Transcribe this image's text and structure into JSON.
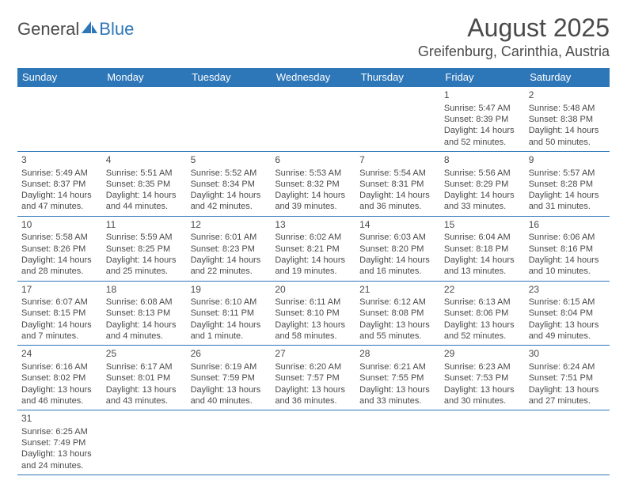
{
  "logo": {
    "textA": "General",
    "textB": "Blue"
  },
  "title": "August 2025",
  "location": "Greifenburg, Carinthia, Austria",
  "colors": {
    "accent": "#2d76b8",
    "text": "#4a4a4a",
    "bg": "#ffffff"
  },
  "dayHeaders": [
    "Sunday",
    "Monday",
    "Tuesday",
    "Wednesday",
    "Thursday",
    "Friday",
    "Saturday"
  ],
  "weeks": [
    [
      null,
      null,
      null,
      null,
      null,
      {
        "n": "1",
        "sr": "Sunrise: 5:47 AM",
        "ss": "Sunset: 8:39 PM",
        "dl1": "Daylight: 14 hours",
        "dl2": "and 52 minutes."
      },
      {
        "n": "2",
        "sr": "Sunrise: 5:48 AM",
        "ss": "Sunset: 8:38 PM",
        "dl1": "Daylight: 14 hours",
        "dl2": "and 50 minutes."
      }
    ],
    [
      {
        "n": "3",
        "sr": "Sunrise: 5:49 AM",
        "ss": "Sunset: 8:37 PM",
        "dl1": "Daylight: 14 hours",
        "dl2": "and 47 minutes."
      },
      {
        "n": "4",
        "sr": "Sunrise: 5:51 AM",
        "ss": "Sunset: 8:35 PM",
        "dl1": "Daylight: 14 hours",
        "dl2": "and 44 minutes."
      },
      {
        "n": "5",
        "sr": "Sunrise: 5:52 AM",
        "ss": "Sunset: 8:34 PM",
        "dl1": "Daylight: 14 hours",
        "dl2": "and 42 minutes."
      },
      {
        "n": "6",
        "sr": "Sunrise: 5:53 AM",
        "ss": "Sunset: 8:32 PM",
        "dl1": "Daylight: 14 hours",
        "dl2": "and 39 minutes."
      },
      {
        "n": "7",
        "sr": "Sunrise: 5:54 AM",
        "ss": "Sunset: 8:31 PM",
        "dl1": "Daylight: 14 hours",
        "dl2": "and 36 minutes."
      },
      {
        "n": "8",
        "sr": "Sunrise: 5:56 AM",
        "ss": "Sunset: 8:29 PM",
        "dl1": "Daylight: 14 hours",
        "dl2": "and 33 minutes."
      },
      {
        "n": "9",
        "sr": "Sunrise: 5:57 AM",
        "ss": "Sunset: 8:28 PM",
        "dl1": "Daylight: 14 hours",
        "dl2": "and 31 minutes."
      }
    ],
    [
      {
        "n": "10",
        "sr": "Sunrise: 5:58 AM",
        "ss": "Sunset: 8:26 PM",
        "dl1": "Daylight: 14 hours",
        "dl2": "and 28 minutes."
      },
      {
        "n": "11",
        "sr": "Sunrise: 5:59 AM",
        "ss": "Sunset: 8:25 PM",
        "dl1": "Daylight: 14 hours",
        "dl2": "and 25 minutes."
      },
      {
        "n": "12",
        "sr": "Sunrise: 6:01 AM",
        "ss": "Sunset: 8:23 PM",
        "dl1": "Daylight: 14 hours",
        "dl2": "and 22 minutes."
      },
      {
        "n": "13",
        "sr": "Sunrise: 6:02 AM",
        "ss": "Sunset: 8:21 PM",
        "dl1": "Daylight: 14 hours",
        "dl2": "and 19 minutes."
      },
      {
        "n": "14",
        "sr": "Sunrise: 6:03 AM",
        "ss": "Sunset: 8:20 PM",
        "dl1": "Daylight: 14 hours",
        "dl2": "and 16 minutes."
      },
      {
        "n": "15",
        "sr": "Sunrise: 6:04 AM",
        "ss": "Sunset: 8:18 PM",
        "dl1": "Daylight: 14 hours",
        "dl2": "and 13 minutes."
      },
      {
        "n": "16",
        "sr": "Sunrise: 6:06 AM",
        "ss": "Sunset: 8:16 PM",
        "dl1": "Daylight: 14 hours",
        "dl2": "and 10 minutes."
      }
    ],
    [
      {
        "n": "17",
        "sr": "Sunrise: 6:07 AM",
        "ss": "Sunset: 8:15 PM",
        "dl1": "Daylight: 14 hours",
        "dl2": "and 7 minutes."
      },
      {
        "n": "18",
        "sr": "Sunrise: 6:08 AM",
        "ss": "Sunset: 8:13 PM",
        "dl1": "Daylight: 14 hours",
        "dl2": "and 4 minutes."
      },
      {
        "n": "19",
        "sr": "Sunrise: 6:10 AM",
        "ss": "Sunset: 8:11 PM",
        "dl1": "Daylight: 14 hours",
        "dl2": "and 1 minute."
      },
      {
        "n": "20",
        "sr": "Sunrise: 6:11 AM",
        "ss": "Sunset: 8:10 PM",
        "dl1": "Daylight: 13 hours",
        "dl2": "and 58 minutes."
      },
      {
        "n": "21",
        "sr": "Sunrise: 6:12 AM",
        "ss": "Sunset: 8:08 PM",
        "dl1": "Daylight: 13 hours",
        "dl2": "and 55 minutes."
      },
      {
        "n": "22",
        "sr": "Sunrise: 6:13 AM",
        "ss": "Sunset: 8:06 PM",
        "dl1": "Daylight: 13 hours",
        "dl2": "and 52 minutes."
      },
      {
        "n": "23",
        "sr": "Sunrise: 6:15 AM",
        "ss": "Sunset: 8:04 PM",
        "dl1": "Daylight: 13 hours",
        "dl2": "and 49 minutes."
      }
    ],
    [
      {
        "n": "24",
        "sr": "Sunrise: 6:16 AM",
        "ss": "Sunset: 8:02 PM",
        "dl1": "Daylight: 13 hours",
        "dl2": "and 46 minutes."
      },
      {
        "n": "25",
        "sr": "Sunrise: 6:17 AM",
        "ss": "Sunset: 8:01 PM",
        "dl1": "Daylight: 13 hours",
        "dl2": "and 43 minutes."
      },
      {
        "n": "26",
        "sr": "Sunrise: 6:19 AM",
        "ss": "Sunset: 7:59 PM",
        "dl1": "Daylight: 13 hours",
        "dl2": "and 40 minutes."
      },
      {
        "n": "27",
        "sr": "Sunrise: 6:20 AM",
        "ss": "Sunset: 7:57 PM",
        "dl1": "Daylight: 13 hours",
        "dl2": "and 36 minutes."
      },
      {
        "n": "28",
        "sr": "Sunrise: 6:21 AM",
        "ss": "Sunset: 7:55 PM",
        "dl1": "Daylight: 13 hours",
        "dl2": "and 33 minutes."
      },
      {
        "n": "29",
        "sr": "Sunrise: 6:23 AM",
        "ss": "Sunset: 7:53 PM",
        "dl1": "Daylight: 13 hours",
        "dl2": "and 30 minutes."
      },
      {
        "n": "30",
        "sr": "Sunrise: 6:24 AM",
        "ss": "Sunset: 7:51 PM",
        "dl1": "Daylight: 13 hours",
        "dl2": "and 27 minutes."
      }
    ],
    [
      {
        "n": "31",
        "sr": "Sunrise: 6:25 AM",
        "ss": "Sunset: 7:49 PM",
        "dl1": "Daylight: 13 hours",
        "dl2": "and 24 minutes."
      },
      null,
      null,
      null,
      null,
      null,
      null
    ]
  ]
}
